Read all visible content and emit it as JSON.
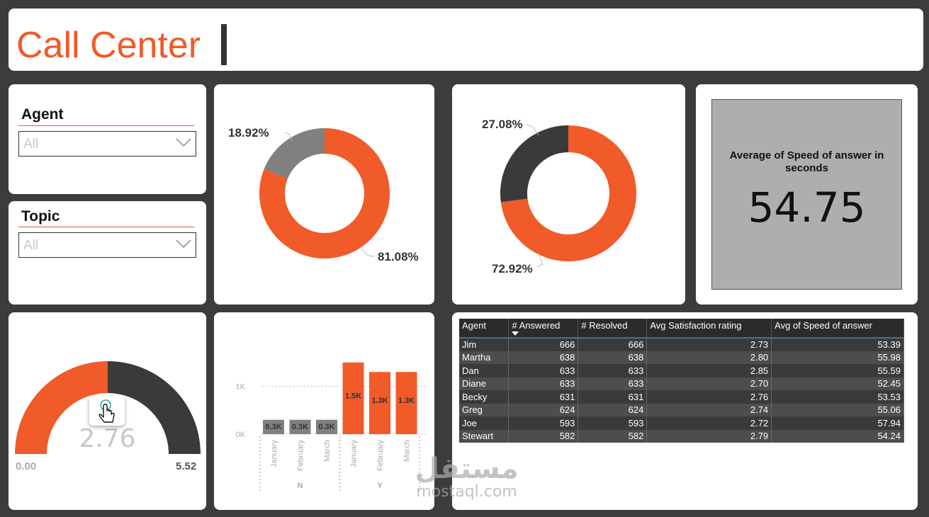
{
  "header": {
    "title": "Call Center"
  },
  "slicers": [
    {
      "title": "Agent",
      "value": "All"
    },
    {
      "title": "Topic",
      "value": "All"
    }
  ],
  "donut1": {
    "large_label": "81.08%",
    "small_label": "18.92%",
    "large_value": 81.08,
    "small_value": 18.92,
    "colors": {
      "large": "#f15a29",
      "small": "#808080"
    }
  },
  "donut2": {
    "large_label": "72.92%",
    "small_label": "27.08%",
    "large_value": 72.92,
    "small_value": 27.08,
    "colors": {
      "large": "#f15a29",
      "small": "#3a3a3a"
    }
  },
  "kpi": {
    "label": "Average of Speed of answer in seconds",
    "value": "54.75"
  },
  "gauge": {
    "value": "2.76",
    "min": "0.00",
    "max": "5.52",
    "fill_fraction": 0.5,
    "colors": {
      "fill": "#f15a29",
      "rest": "#3a3a3a"
    }
  },
  "chart_data": {
    "type": "bar",
    "categories": [
      "January",
      "February",
      "March",
      "January",
      "February",
      "March"
    ],
    "groups": [
      {
        "name": "N",
        "count": 3
      },
      {
        "name": "Y",
        "count": 3
      }
    ],
    "values": [
      300,
      300,
      300,
      1500,
      1300,
      1300
    ],
    "data_labels": [
      "0.3K",
      "0.3K",
      "0.3K",
      "1.5K",
      "1.3K",
      "1.3K"
    ],
    "y_ticks": [
      {
        "value": 0,
        "label": "0K"
      },
      {
        "value": 1000,
        "label": "1K"
      }
    ],
    "ylim": [
      0,
      1600
    ],
    "colors": [
      "#808080",
      "#808080",
      "#808080",
      "#f15a29",
      "#f15a29",
      "#f15a29"
    ]
  },
  "table": {
    "columns": [
      "Agent",
      "# Answered",
      "# Resolved",
      "Avg Satisfaction rating",
      "Avg of Speed of answer"
    ],
    "rows": [
      [
        "Jim",
        "666",
        "666",
        "2.73",
        "53.39"
      ],
      [
        "Martha",
        "638",
        "638",
        "2.80",
        "55.98"
      ],
      [
        "Dan",
        "633",
        "633",
        "2.85",
        "55.59"
      ],
      [
        "Diane",
        "633",
        "633",
        "2.70",
        "52.45"
      ],
      [
        "Becky",
        "631",
        "631",
        "2.76",
        "53.53"
      ],
      [
        "Greg",
        "624",
        "624",
        "2.74",
        "55.06"
      ],
      [
        "Joe",
        "593",
        "593",
        "2.72",
        "57.94"
      ],
      [
        "Stewart",
        "582",
        "582",
        "2.79",
        "54.24"
      ]
    ]
  },
  "watermark": {
    "arabic": "مستقل",
    "latin": "mostaql.com"
  }
}
